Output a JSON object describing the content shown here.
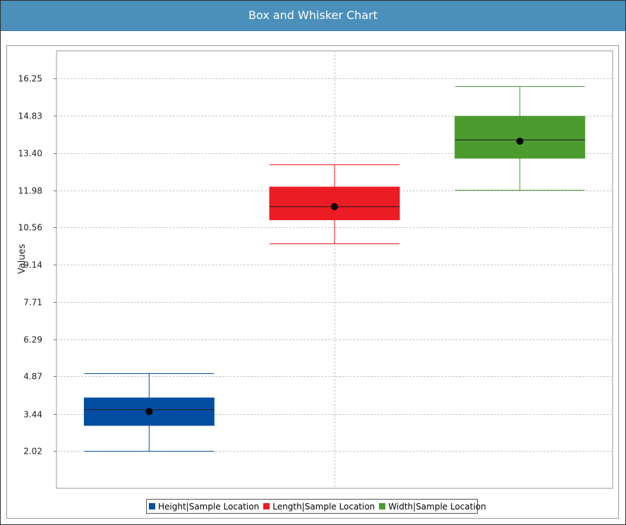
{
  "window": {
    "title": "Box and Whisker Chart"
  },
  "chart_data": {
    "type": "box",
    "title": "Box and Whisker Chart",
    "xlabel": "",
    "ylabel": "Values",
    "yticks": [
      "2.02",
      "3.44",
      "4.87",
      "6.29",
      "7.71",
      "9.14",
      "10.56",
      "11.98",
      "13.40",
      "14.83",
      "16.25"
    ],
    "ylim": [
      0.6,
      17.3
    ],
    "grid": true,
    "legend_position": "bottom",
    "series": [
      {
        "name": "Height|Sample Location",
        "color": "#034ea2",
        "whisker_low": 2.02,
        "q1": 3.0,
        "median": 3.6,
        "q3": 4.05,
        "whisker_high": 5.0,
        "mean": 3.53
      },
      {
        "name": "Length|Sample Location",
        "color": "#ec1c24",
        "whisker_low": 9.95,
        "q1": 10.85,
        "median": 11.35,
        "q3": 12.1,
        "whisker_high": 12.95,
        "mean": 11.35
      },
      {
        "name": "Width|Sample Location",
        "color": "#4b9b2f",
        "whisker_low": 12.0,
        "q1": 13.2,
        "median": 13.9,
        "q3": 14.8,
        "whisker_high": 15.95,
        "mean": 13.85
      }
    ]
  }
}
